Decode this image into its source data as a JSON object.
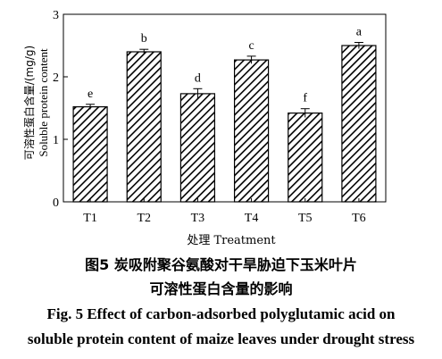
{
  "chart_data": {
    "type": "bar",
    "categories": [
      "T1",
      "T2",
      "T3",
      "T4",
      "T5",
      "T6"
    ],
    "values": [
      1.52,
      2.4,
      1.73,
      2.27,
      1.42,
      2.5
    ],
    "errors": [
      0.04,
      0.04,
      0.08,
      0.06,
      0.07,
      0.05
    ],
    "significance": [
      "e",
      "b",
      "d",
      "c",
      "f",
      "a"
    ],
    "xlabel": "处理 Treatment",
    "ylabel_cn": "可溶性蛋白含量/(mg/g)",
    "ylabel_en": "Soluble protein content",
    "yticks": [
      "0",
      "1",
      "2",
      "3"
    ],
    "ylim": [
      0,
      3
    ],
    "bar_fill": "diagonal hatch"
  },
  "caption": {
    "cn_line1": "图5  炭吸附聚谷氨酸对干旱胁迫下玉米叶片",
    "cn_line2": "可溶性蛋白含量的影响",
    "en_line1": "Fig. 5   Effect of carbon-adsorbed polyglutamic acid on",
    "en_line2": "soluble protein content of maize leaves under drought stress"
  }
}
